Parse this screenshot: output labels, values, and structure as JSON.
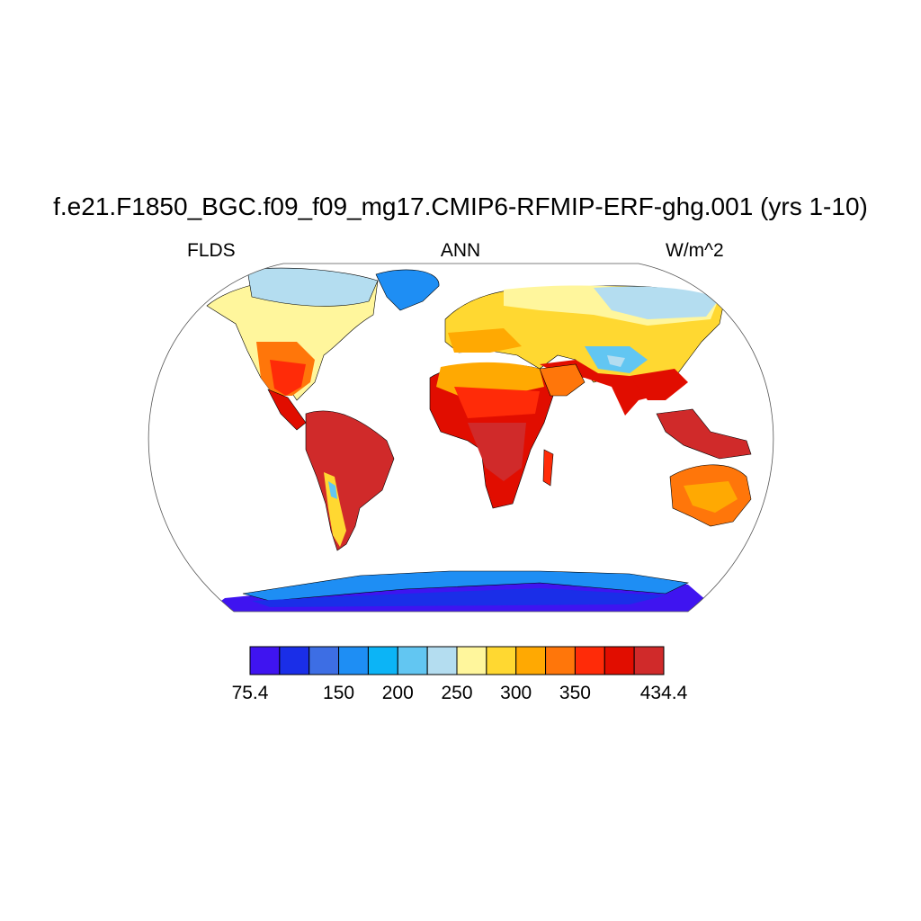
{
  "title": "f.e21.F1850_BGC.f09_f09_mg17.CMIP6-RFMIP-ERF-ghg.001 (yrs 1-10)",
  "left_label": "FLDS",
  "center_label": "ANN",
  "right_label": "W/m^2",
  "colorbar": {
    "colors": [
      "#3f14f0",
      "#1a2ee8",
      "#3d6ee4",
      "#1e8ef4",
      "#0cb4f6",
      "#62c6f2",
      "#b4ddf0",
      "#fff69c",
      "#ffd831",
      "#ffa902",
      "#ff760a",
      "#ff2b08",
      "#e10d00",
      "#d02a2a"
    ],
    "tick_labels": [
      "75.4",
      "150",
      "200",
      "250",
      "300",
      "350",
      "434.4"
    ],
    "tick_positions": [
      0,
      3,
      5,
      7,
      9,
      11,
      14
    ]
  },
  "map": {
    "projection": "Robinson",
    "variable": "FLDS",
    "ocean": "masked (white)"
  }
}
